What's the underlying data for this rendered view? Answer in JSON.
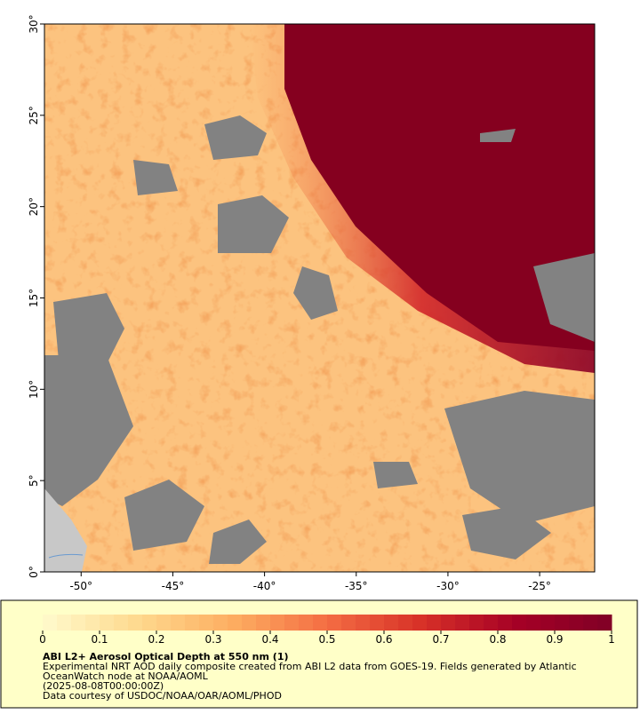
{
  "map": {
    "lon_range": [
      -52,
      -22
    ],
    "lat_range": [
      0,
      30
    ],
    "lon_ticks": [
      {
        "value": -50,
        "label": "-50°"
      },
      {
        "value": -45,
        "label": "-45°"
      },
      {
        "value": -40,
        "label": "-40°"
      },
      {
        "value": -35,
        "label": "-35°"
      },
      {
        "value": -30,
        "label": "-30°"
      },
      {
        "value": -25,
        "label": "-25°"
      }
    ],
    "lat_ticks": [
      {
        "value": 0,
        "label": "0°"
      },
      {
        "value": 5,
        "label": "5°"
      },
      {
        "value": 10,
        "label": "10°"
      },
      {
        "value": 15,
        "label": "15°"
      },
      {
        "value": 20,
        "label": "20°"
      },
      {
        "value": 25,
        "label": "25°"
      },
      {
        "value": 30,
        "label": "30°"
      }
    ]
  },
  "colorbar": {
    "range": [
      0,
      1
    ],
    "ticks": [
      0,
      0.1,
      0.2,
      0.3,
      0.4,
      0.5,
      0.6,
      0.7,
      0.8,
      0.9,
      1
    ]
  },
  "caption": {
    "title": "ABI L2+ Aerosol Optical Depth at 550 nm (1)",
    "lines": [
      "Experimental NRT AOD daily composite created from ABI L2 data from GOES-19. Fields generated by Atlantic",
      "OceanWatch node at NOAA/AOML",
      "(2025-08-08T00:00:00Z)",
      "Data courtesy of USDOC/NOAA/OAR/AOML/PHOD"
    ]
  }
}
